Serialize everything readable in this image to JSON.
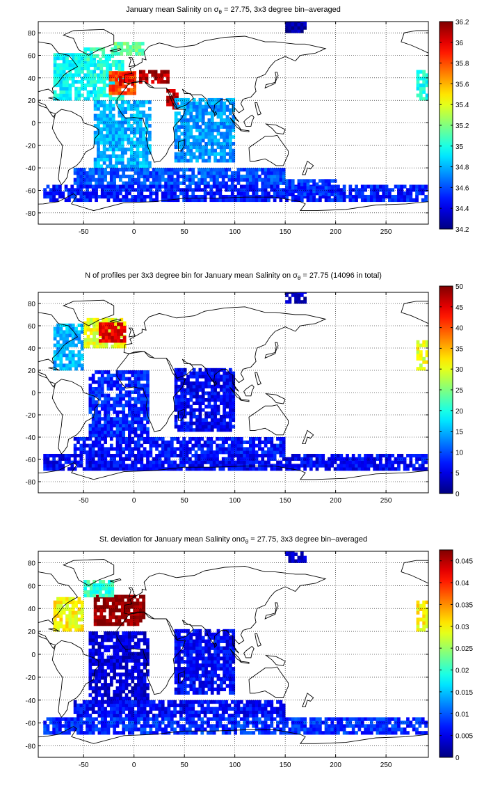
{
  "chart_data": [
    {
      "type": "heatmap",
      "title": "January mean Salinity on σθ = 27.75, 3x3 degree bin–averaged",
      "title_parts": [
        "January mean Salinity on ",
        "σ",
        "θ",
        " = 27.75, 3x3 degree bin–averaged"
      ],
      "xlim": [
        -95,
        292
      ],
      "ylim": [
        -90,
        90
      ],
      "xticks": [
        -50,
        0,
        50,
        100,
        150,
        200,
        250
      ],
      "yticks": [
        80,
        60,
        40,
        20,
        0,
        -20,
        -40,
        -60,
        -80
      ],
      "grid": "dotted",
      "colorbar": {
        "min": 34.2,
        "max": 36.2,
        "ticks": [
          34.2,
          34.4,
          34.6,
          34.8,
          35,
          35.2,
          35.4,
          35.6,
          35.8,
          36,
          36.2
        ]
      },
      "regions": [
        {
          "lon": [
            -80,
            -40
          ],
          "lat": [
            20,
            60
          ],
          "value": 34.95
        },
        {
          "lon": [
            -40,
            -10
          ],
          "lat": [
            20,
            55
          ],
          "value": 35.0
        },
        {
          "lon": [
            -25,
            0
          ],
          "lat": [
            25,
            45
          ],
          "value": 35.8
        },
        {
          "lon": [
            -15,
            0
          ],
          "lat": [
            33,
            43
          ],
          "value": 36.0
        },
        {
          "lon": [
            -50,
            -20
          ],
          "lat": [
            55,
            65
          ],
          "value": 35.05
        },
        {
          "lon": [
            -20,
            10
          ],
          "lat": [
            60,
            70
          ],
          "value": 35.15
        },
        {
          "lon": [
            -40,
            15
          ],
          "lat": [
            -40,
            20
          ],
          "value": 34.8
        },
        {
          "lon": [
            5,
            35
          ],
          "lat": [
            35,
            45
          ],
          "value": 36.1
        },
        {
          "lon": [
            32,
            42
          ],
          "lat": [
            12,
            28
          ],
          "value": 36.1
        },
        {
          "lon": [
            40,
            100
          ],
          "lat": [
            -35,
            20
          ],
          "value": 34.75
        },
        {
          "lon": [
            -60,
            150
          ],
          "lat": [
            -55,
            -40
          ],
          "value": 34.6
        },
        {
          "lon": [
            -90,
            290
          ],
          "lat": [
            -70,
            -55
          ],
          "value": 34.5
        },
        {
          "lon": [
            150,
            200
          ],
          "lat": [
            -65,
            -50
          ],
          "value": 34.55
        },
        {
          "lon": [
            280,
            292
          ],
          "lat": [
            20,
            45
          ],
          "value": 35.0
        },
        {
          "lon": [
            150,
            170
          ],
          "lat": [
            80,
            90
          ],
          "value": 34.3
        }
      ]
    },
    {
      "type": "heatmap",
      "title": "N of profiles per 3x3 degree bin for January mean Salinity on σθ = 27.75 (14096 in total)",
      "title_parts": [
        "N of profiles per 3x3 degree bin for January mean Salinity on ",
        "σ",
        "θ",
        " = 27.75 (14096 in total)"
      ],
      "total_profiles": 14096,
      "xlim": [
        -95,
        292
      ],
      "ylim": [
        -90,
        90
      ],
      "xticks": [
        -50,
        0,
        50,
        100,
        150,
        200,
        250
      ],
      "yticks": [
        80,
        60,
        40,
        20,
        0,
        -20,
        -40,
        -60,
        -80
      ],
      "grid": "dotted",
      "colorbar": {
        "min": 0,
        "max": 50,
        "ticks": [
          0,
          5,
          10,
          15,
          20,
          25,
          30,
          35,
          40,
          45,
          50
        ]
      },
      "regions": [
        {
          "lon": [
            -80,
            -50
          ],
          "lat": [
            20,
            60
          ],
          "value": 15
        },
        {
          "lon": [
            -50,
            -10
          ],
          "lat": [
            40,
            65
          ],
          "value": 30
        },
        {
          "lon": [
            -35,
            -10
          ],
          "lat": [
            45,
            62
          ],
          "value": 45
        },
        {
          "lon": [
            -45,
            15
          ],
          "lat": [
            -40,
            20
          ],
          "value": 8
        },
        {
          "lon": [
            40,
            100
          ],
          "lat": [
            -35,
            20
          ],
          "value": 6
        },
        {
          "lon": [
            -60,
            150
          ],
          "lat": [
            -55,
            -40
          ],
          "value": 7
        },
        {
          "lon": [
            -90,
            290
          ],
          "lat": [
            -70,
            -55
          ],
          "value": 6
        },
        {
          "lon": [
            280,
            292
          ],
          "lat": [
            20,
            45
          ],
          "value": 30
        },
        {
          "lon": [
            150,
            170
          ],
          "lat": [
            80,
            90
          ],
          "value": 3
        }
      ]
    },
    {
      "type": "heatmap",
      "title": "St. deviation for January mean Salinity on σθ = 27.75, 3x3 degree bin–averaged",
      "title_parts": [
        "St. deviation for January mean Salinity on",
        "σ",
        "θ",
        " = 27.75, 3x3 degree bin–averaged"
      ],
      "xlim": [
        -95,
        292
      ],
      "ylim": [
        -90,
        90
      ],
      "xticks": [
        -50,
        0,
        50,
        100,
        150,
        200,
        250
      ],
      "yticks": [
        80,
        60,
        40,
        20,
        0,
        -20,
        -40,
        -60,
        -80
      ],
      "grid": "dotted",
      "colorbar": {
        "min": 0,
        "max": 0.0475,
        "ticks": [
          0,
          0.005,
          0.01,
          0.015,
          0.02,
          0.025,
          0.03,
          0.035,
          0.04,
          0.045
        ]
      },
      "regions": [
        {
          "lon": [
            -80,
            -50
          ],
          "lat": [
            20,
            50
          ],
          "value": 0.03
        },
        {
          "lon": [
            -40,
            10
          ],
          "lat": [
            25,
            50
          ],
          "value": 0.047
        },
        {
          "lon": [
            -50,
            -20
          ],
          "lat": [
            50,
            65
          ],
          "value": 0.02
        },
        {
          "lon": [
            -45,
            15
          ],
          "lat": [
            -40,
            20
          ],
          "value": 0.004
        },
        {
          "lon": [
            40,
            100
          ],
          "lat": [
            -35,
            20
          ],
          "value": 0.006
        },
        {
          "lon": [
            -60,
            150
          ],
          "lat": [
            -55,
            -40
          ],
          "value": 0.006
        },
        {
          "lon": [
            -90,
            290
          ],
          "lat": [
            -70,
            -55
          ],
          "value": 0.008
        },
        {
          "lon": [
            280,
            292
          ],
          "lat": [
            20,
            45
          ],
          "value": 0.03
        },
        {
          "lon": [
            150,
            170
          ],
          "lat": [
            80,
            90
          ],
          "value": 0.003
        }
      ]
    }
  ]
}
